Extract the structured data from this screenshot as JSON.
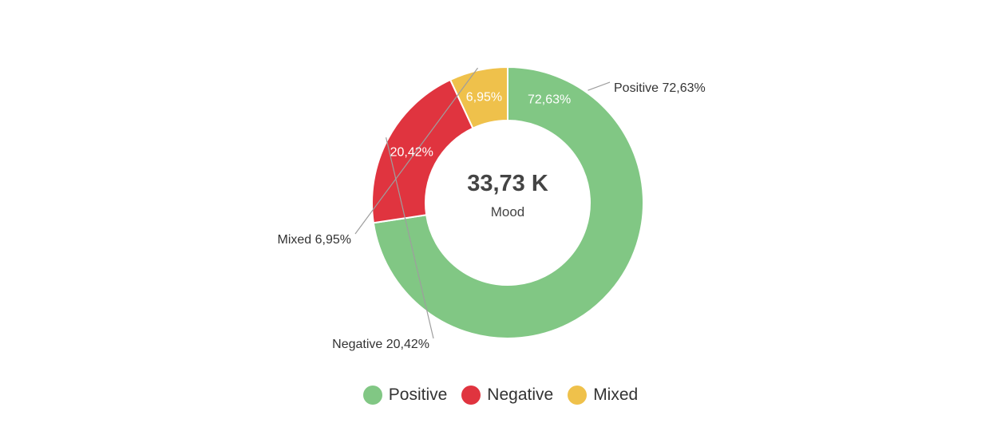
{
  "chart_data": {
    "type": "pie",
    "variant": "donut",
    "center": {
      "value": "33,73 K",
      "label": "Mood"
    },
    "slices": [
      {
        "name": "Positive",
        "value": 72.63,
        "label": "72,63%",
        "outer_label": "Positive 72,63%",
        "color": "#81c784"
      },
      {
        "name": "Negative",
        "value": 20.42,
        "label": "20,42%",
        "outer_label": "Negative 20,42%",
        "color": "#e0343f"
      },
      {
        "name": "Mixed",
        "value": 6.95,
        "label": "6,95%",
        "outer_label": "Mixed 6,95%",
        "color": "#efc14b"
      }
    ],
    "legend": {
      "position": "bottom",
      "items": [
        "Positive",
        "Negative",
        "Mixed"
      ]
    },
    "colors": {
      "text_dark": "#333333",
      "text_center": "#444444",
      "leader_line": "#9e9e9e",
      "slice_border": "#ffffff",
      "inner_label": "#ffffff"
    }
  }
}
